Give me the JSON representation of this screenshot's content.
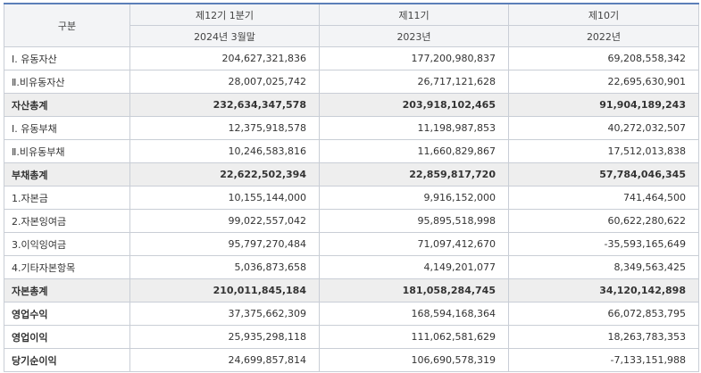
{
  "header": {
    "category": "구분",
    "periods": [
      {
        "name": "제12기 1분기",
        "date": "2024년 3월말"
      },
      {
        "name": "제11기",
        "date": "2023년"
      },
      {
        "name": "제10기",
        "date": "2022년"
      }
    ]
  },
  "rows": [
    {
      "label": "Ⅰ. 유동자산",
      "values": [
        "204,627,321,836",
        "177,200,980,837",
        "69,208,558,342"
      ]
    },
    {
      "label": "Ⅱ.비유동자산",
      "values": [
        "28,007,025,742",
        "26,717,121,628",
        "22,695,630,901"
      ]
    },
    {
      "label": "자산총계",
      "values": [
        "232,634,347,578",
        "203,918,102,465",
        "91,904,189,243"
      ]
    },
    {
      "label": "Ⅰ. 유동부채",
      "values": [
        "12,375,918,578",
        "11,198,987,853",
        "40,272,032,507"
      ]
    },
    {
      "label": "Ⅱ.비유동부채",
      "values": [
        "10,246,583,816",
        "11,660,829,867",
        "17,512,013,838"
      ]
    },
    {
      "label": "부채총계",
      "values": [
        "22,622,502,394",
        "22,859,817,720",
        "57,784,046,345"
      ]
    },
    {
      "label": "1.자본금",
      "values": [
        "10,155,144,000",
        "9,916,152,000",
        "741,464,500"
      ]
    },
    {
      "label": "2.자본잉여금",
      "values": [
        "99,022,557,042",
        "95,895,518,998",
        "60,622,280,622"
      ]
    },
    {
      "label": "3.이익잉여금",
      "values": [
        "95,797,270,484",
        "71,097,412,670",
        "-35,593,165,649"
      ]
    },
    {
      "label": "4.기타자본항목",
      "values": [
        "5,036,873,658",
        "4,149,201,077",
        "8,349,563,425"
      ]
    },
    {
      "label": "자본총계",
      "values": [
        "210,011,845,184",
        "181,058,284,745",
        "34,120,142,898"
      ]
    },
    {
      "label": "영업수익",
      "values": [
        "37,375,662,309",
        "168,594,168,364",
        "66,072,853,795"
      ]
    },
    {
      "label": "영업이익",
      "values": [
        "25,935,298,118",
        "111,062,581,629",
        "18,263,783,353"
      ]
    },
    {
      "label": "당기순이익",
      "values": [
        "24,699,857,814",
        "106,690,578,319",
        "-7,133,151,988"
      ]
    }
  ]
}
